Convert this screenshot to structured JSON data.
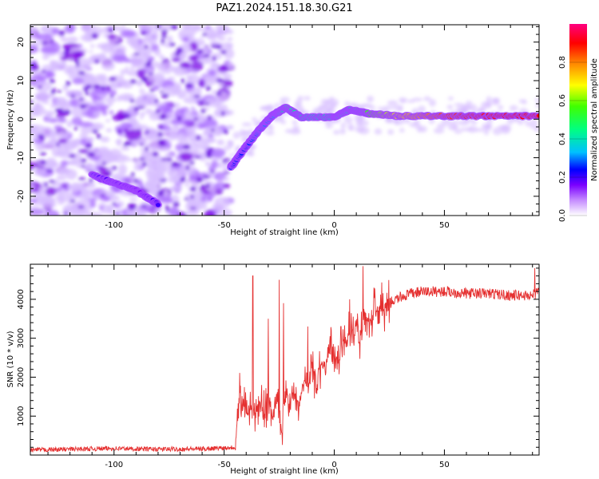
{
  "title": "PAZ1.2024.151.18.30.G21",
  "chart_data": [
    {
      "type": "heatmap",
      "xlabel": "Height of straight line (km)",
      "ylabel": "Frequency (Hz)",
      "xlim": [
        -138,
        93
      ],
      "ylim": [
        -25,
        24.5
      ],
      "xticks": [
        -100,
        -50,
        0,
        50
      ],
      "yticks": [
        -20,
        -10,
        0,
        10,
        20
      ],
      "colorbar": {
        "label": "Normalized spectral amplitude",
        "range": [
          0,
          1
        ],
        "ticks": [
          "0.0",
          "0.2",
          "0.4",
          "0.6",
          "0.8"
        ],
        "tick_values": [
          0.0,
          0.2,
          0.4,
          0.6,
          0.8
        ]
      },
      "ridge": [
        {
          "x": -110,
          "y": -14.5,
          "v": 0.2
        },
        {
          "x": -100,
          "y": -16.5,
          "v": 0.18
        },
        {
          "x": -90,
          "y": -18.5,
          "v": 0.15
        },
        {
          "x": -80,
          "y": -22,
          "v": 0.2
        },
        {
          "x": -47,
          "y": -12.5,
          "v": 0.25
        },
        {
          "x": -40,
          "y": -7,
          "v": 0.25
        },
        {
          "x": -33,
          "y": -2,
          "v": 0.3
        },
        {
          "x": -28,
          "y": 1,
          "v": 0.3
        },
        {
          "x": -22,
          "y": 3,
          "v": 0.45
        },
        {
          "x": -15,
          "y": 0.5,
          "v": 0.4
        },
        {
          "x": 0,
          "y": 0.5,
          "v": 0.4
        },
        {
          "x": 7,
          "y": 2.5,
          "v": 0.4
        },
        {
          "x": 15,
          "y": 1.5,
          "v": 0.55
        },
        {
          "x": 30,
          "y": 0.8,
          "v": 0.7
        },
        {
          "x": 50,
          "y": 0.8,
          "v": 0.85
        },
        {
          "x": 70,
          "y": 0.8,
          "v": 0.9
        },
        {
          "x": 93,
          "y": 0.8,
          "v": 0.9
        }
      ]
    },
    {
      "type": "line",
      "xlabel": "Height of straight line (km)",
      "ylabel": "SNR (10 * v/v)",
      "xlim": [
        -138,
        93
      ],
      "ylim": [
        0,
        4900
      ],
      "xticks": [
        -100,
        -50,
        0,
        50
      ],
      "yticks": [
        1000,
        2000,
        3000,
        4000
      ],
      "color": "#e53030",
      "series": [
        {
          "x": [
            -138,
            -120,
            -100,
            -80,
            -60,
            -45,
            -43,
            -40,
            -38,
            -36,
            -34,
            -32,
            -30,
            -28,
            -26,
            -24,
            -22,
            -20,
            -18,
            -16,
            -14,
            -12,
            -10,
            -8,
            -6,
            -4,
            -2,
            0,
            2,
            4,
            6,
            8,
            10,
            12,
            14,
            16,
            18,
            20,
            22,
            25,
            30,
            35,
            40,
            50,
            60,
            70,
            80,
            90,
            93
          ],
          "y": [
            130,
            150,
            170,
            150,
            160,
            200,
            1600,
            1000,
            1300,
            900,
            1400,
            1000,
            1600,
            800,
            1500,
            700,
            1800,
            1200,
            1700,
            1200,
            2000,
            1600,
            2300,
            1900,
            2400,
            2200,
            2800,
            2600,
            2500,
            2900,
            3000,
            3200,
            3300,
            3000,
            3500,
            3400,
            3600,
            3700,
            3800,
            3900,
            4050,
            4150,
            4200,
            4200,
            4150,
            4150,
            4100,
            4100,
            4200
          ]
        }
      ],
      "spikes": [
        {
          "x": -37,
          "y": 4600
        },
        {
          "x": -33,
          "y": 1800
        },
        {
          "x": -30,
          "y": 3500
        },
        {
          "x": -25,
          "y": 4500
        },
        {
          "x": -23,
          "y": 3900
        },
        {
          "x": -12,
          "y": 3300
        },
        {
          "x": 3,
          "y": 3300
        },
        {
          "x": 7,
          "y": 4000
        },
        {
          "x": 13,
          "y": 4850
        },
        {
          "x": 18,
          "y": 4300
        },
        {
          "x": 91,
          "y": 4800
        }
      ]
    }
  ]
}
